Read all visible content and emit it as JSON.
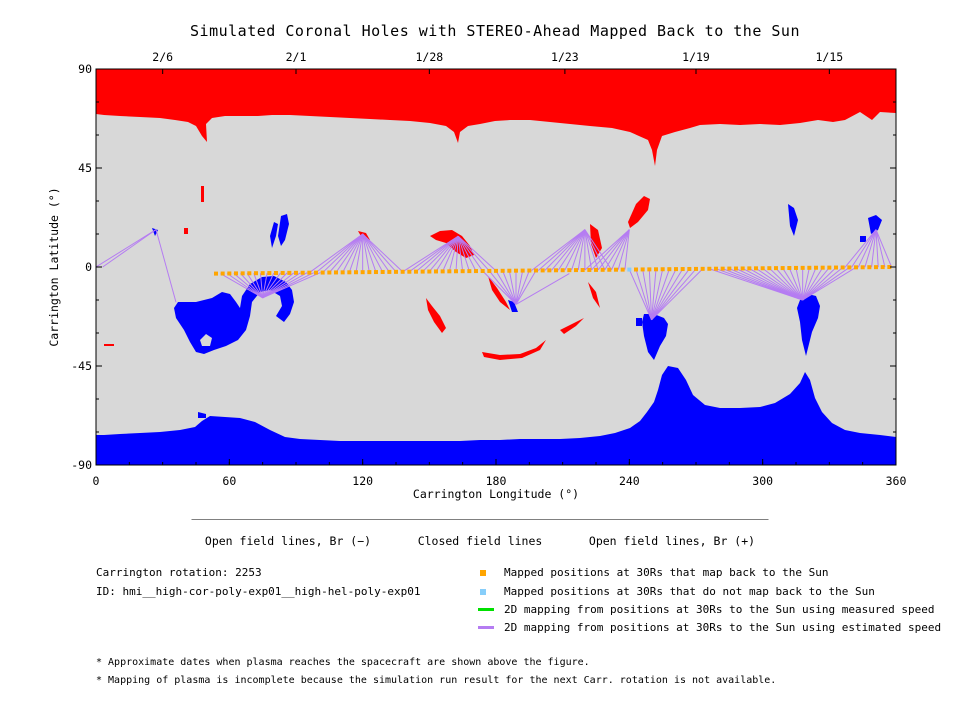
{
  "chart_data": {
    "type": "map",
    "title": "Simulated Coronal Holes with STEREO-Ahead Mapped Back to the Sun",
    "xlabel": "Carrington Longitude (°)",
    "ylabel": "Carrington Latitude (°)",
    "xlim": [
      0,
      360
    ],
    "ylim": [
      -90,
      90
    ],
    "xticks": [
      0,
      60,
      120,
      180,
      240,
      300,
      360
    ],
    "yticks": [
      -90,
      -45,
      0,
      45,
      90
    ],
    "top_axis_dates": [
      {
        "label": "2/6",
        "lon": 30
      },
      {
        "label": "2/1",
        "lon": 90
      },
      {
        "label": "1/28",
        "lon": 150
      },
      {
        "label": "1/23",
        "lon": 211
      },
      {
        "label": "1/19",
        "lon": 270
      },
      {
        "label": "1/15",
        "lon": 330
      }
    ],
    "regions": {
      "closed_field_color": "#d8d8d8",
      "open_positive_color": "#ff0000",
      "open_negative_color": "#0000ff",
      "north_polar_hole": "Br (+)",
      "south_polar_hole": "Br (-)"
    },
    "mapped_positions": {
      "lat_start": -3,
      "lat_end": 0,
      "lon_start": 54,
      "lon_end": 358,
      "step_deg": 3,
      "unmapped_lons": [
        240
      ]
    },
    "mapping_fans": [
      {
        "target": [
          27,
          17
        ],
        "from": [
          0,
          3
        ],
        "extra_from": [
          [
            36,
            -16
          ]
        ]
      },
      {
        "target": [
          75,
          -14
        ],
        "from": [
          56,
          102
        ]
      },
      {
        "target": [
          120,
          15
        ],
        "from": [
          96,
          139
        ]
      },
      {
        "target": [
          163,
          14
        ],
        "from": [
          138,
          180
        ]
      },
      {
        "target": [
          189,
          -17
        ],
        "from": [
          174,
          198
        ],
        "extra_from": [
          [
            213,
            -3
          ]
        ]
      },
      {
        "target": [
          220,
          17
        ],
        "from": [
          196,
          232
        ]
      },
      {
        "target": [
          240,
          17
        ],
        "from": [
          220,
          240
        ]
      },
      {
        "target": [
          250,
          -24
        ],
        "from": [
          240,
          275
        ]
      },
      {
        "target": [
          318,
          -15
        ],
        "from": [
          276,
          342
        ]
      },
      {
        "target": [
          351,
          17
        ],
        "from": [
          337,
          359
        ]
      }
    ]
  },
  "colorbar": {
    "colors": [
      "#0000ff",
      "#d8d8d8",
      "#ff0000"
    ],
    "labels": [
      "Open field lines, Br (−)",
      "Closed field lines",
      "Open field lines, Br (+)"
    ]
  },
  "info": {
    "rotation": "Carrington rotation: 2253",
    "id": "ID: hmi__high-cor-poly-exp01__high-hel-poly-exp01"
  },
  "legend": [
    {
      "symbol": "square",
      "color": "#ffa500",
      "label": "Mapped positions at 30Rs that map back to the Sun"
    },
    {
      "symbol": "square",
      "color": "#87cefa",
      "label": "Mapped positions at 30Rs that do not map back to the Sun"
    },
    {
      "symbol": "line",
      "color": "#00e000",
      "label": "2D mapping from positions at 30Rs to the Sun using measured speed"
    },
    {
      "symbol": "line",
      "color": "#b57cf2",
      "label": "2D mapping from positions at 30Rs to the Sun using estimated speed"
    }
  ],
  "notes": [
    "* Approximate dates when plasma reaches the spacecraft are shown above the figure.",
    "* Mapping of plasma is incomplete because the simulation run result for the next Carr. rotation is not available."
  ]
}
